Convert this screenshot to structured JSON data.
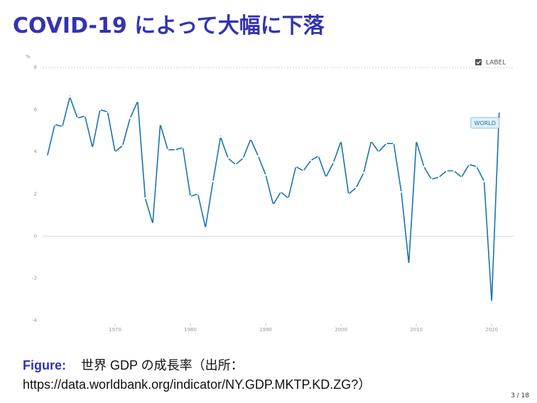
{
  "slide": {
    "title": "COVID-19 によって大幅に下落",
    "caption_label": "Figure:",
    "caption_text": "世界 GDP の成長率（出所：",
    "caption_source": "https://data.worldbank.org/indicator/NY.GDP.MKTP.KD.ZG?）",
    "page": "3 / 18"
  },
  "chart_data": {
    "type": "line",
    "y_label": "%",
    "legend_label": "LABEL",
    "annotation": "WORLD",
    "x": [
      1961,
      1962,
      1963,
      1964,
      1965,
      1966,
      1967,
      1968,
      1969,
      1970,
      1971,
      1972,
      1973,
      1974,
      1975,
      1976,
      1977,
      1978,
      1979,
      1980,
      1981,
      1982,
      1983,
      1984,
      1985,
      1986,
      1987,
      1988,
      1989,
      1990,
      1991,
      1992,
      1993,
      1994,
      1995,
      1996,
      1997,
      1998,
      1999,
      2000,
      2001,
      2002,
      2003,
      2004,
      2005,
      2006,
      2007,
      2008,
      2009,
      2010,
      2011,
      2012,
      2013,
      2014,
      2015,
      2016,
      2017,
      2018,
      2019,
      2020,
      2021
    ],
    "series": [
      {
        "name": "WORLD",
        "color": "#1a74ae",
        "values": [
          3.8,
          5.3,
          5.2,
          6.6,
          5.6,
          5.7,
          4.2,
          6.0,
          5.9,
          4.0,
          4.3,
          5.6,
          6.4,
          1.8,
          0.6,
          5.3,
          4.1,
          4.1,
          4.2,
          1.9,
          2.0,
          0.4,
          2.6,
          4.7,
          3.7,
          3.4,
          3.7,
          4.6,
          3.8,
          2.9,
          1.5,
          2.1,
          1.8,
          3.3,
          3.1,
          3.6,
          3.8,
          2.8,
          3.5,
          4.5,
          2.0,
          2.3,
          3.0,
          4.5,
          4.0,
          4.4,
          4.4,
          2.1,
          -1.3,
          4.5,
          3.3,
          2.7,
          2.8,
          3.1,
          3.1,
          2.8,
          3.4,
          3.3,
          2.6,
          -3.1,
          5.9
        ]
      }
    ],
    "xlim": [
      1960,
      2023
    ],
    "xticks": [
      1970,
      1980,
      1990,
      2000,
      2010,
      2020
    ],
    "ylim": [
      -4,
      8
    ],
    "yticks": [
      -4,
      -2,
      0,
      2,
      4,
      6,
      8
    ]
  }
}
